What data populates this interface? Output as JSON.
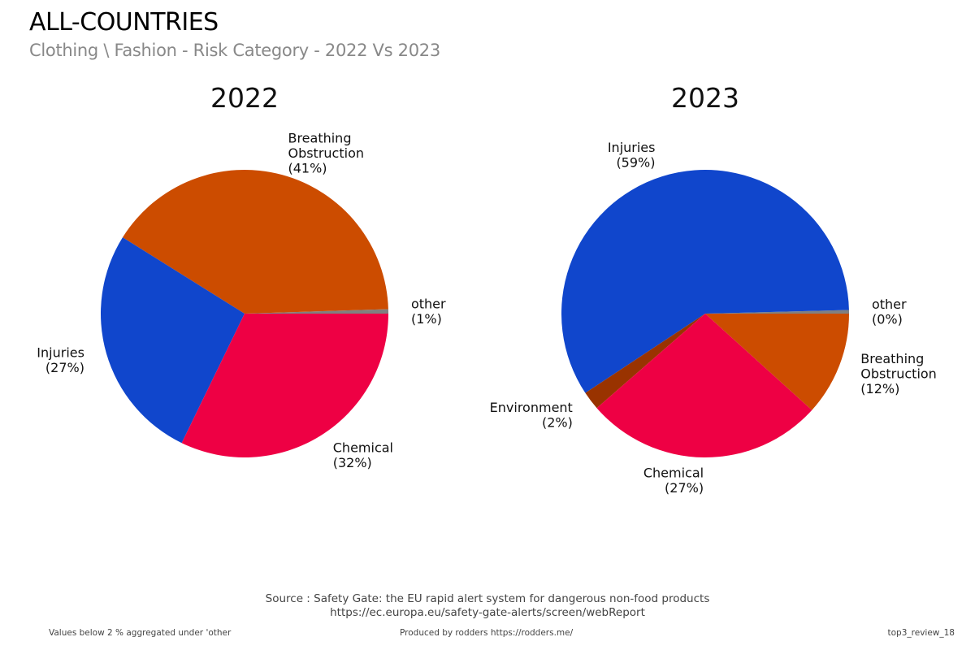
{
  "header": {
    "title": "ALL-COUNTRIES",
    "subtitle": "Clothing \\ Fashion - Risk Category - 2022 Vs 2023"
  },
  "footer": {
    "source_line1": "Source : Safety Gate: the EU rapid alert system for dangerous non-food products",
    "source_line2": "https://ec.europa.eu/safety-gate-alerts/screen/webReport",
    "note": "Values below 2 % aggregated under 'other",
    "produced_by": "Produced by rodders https://rodders.me/",
    "id": "top3_review_18"
  },
  "chart_data": [
    {
      "type": "pie",
      "title": "2022",
      "start": "3 o'clock, counterclockwise",
      "slices": [
        {
          "label": "other",
          "pct_label": "(1%)",
          "value": 0.5,
          "color": "#808080",
          "text": [
            "other",
            "(1%)"
          ]
        },
        {
          "label": "Breathing Obstruction",
          "pct_label": "(41%)",
          "value": 40.6,
          "color": "#CC4C00",
          "text": [
            "Breathing",
            "Obstruction",
            "(41%)"
          ]
        },
        {
          "label": "Injuries",
          "pct_label": "(27%)",
          "value": 26.7,
          "color": "#1046CC",
          "text": [
            "Injuries",
            "(27%)"
          ]
        },
        {
          "label": "Chemical",
          "pct_label": "(32%)",
          "value": 32.2,
          "color": "#EE0044",
          "text": [
            "Chemical",
            "(32%)"
          ]
        }
      ]
    },
    {
      "type": "pie",
      "title": "2023",
      "start": "3 o'clock, counterclockwise",
      "slices": [
        {
          "label": "other",
          "pct_label": "(0%)",
          "value": 0.4,
          "color": "#808080",
          "text": [
            "other",
            "(0%)"
          ]
        },
        {
          "label": "Injuries",
          "pct_label": "(59%)",
          "value": 58.9,
          "color": "#1046CC",
          "text": [
            "Injuries",
            "(59%)"
          ]
        },
        {
          "label": "Environment",
          "pct_label": "(2%)",
          "value": 2.1,
          "color": "#993300",
          "text": [
            "Environment",
            "(2%)"
          ]
        },
        {
          "label": "Chemical",
          "pct_label": "(27%)",
          "value": 26.9,
          "color": "#EE0044",
          "text": [
            "Chemical",
            "(27%)"
          ]
        },
        {
          "label": "Breathing Obstruction",
          "pct_label": "(12%)",
          "value": 11.7,
          "color": "#CC4C00",
          "text": [
            "Breathing",
            "Obstruction",
            "(12%)"
          ]
        }
      ]
    }
  ]
}
